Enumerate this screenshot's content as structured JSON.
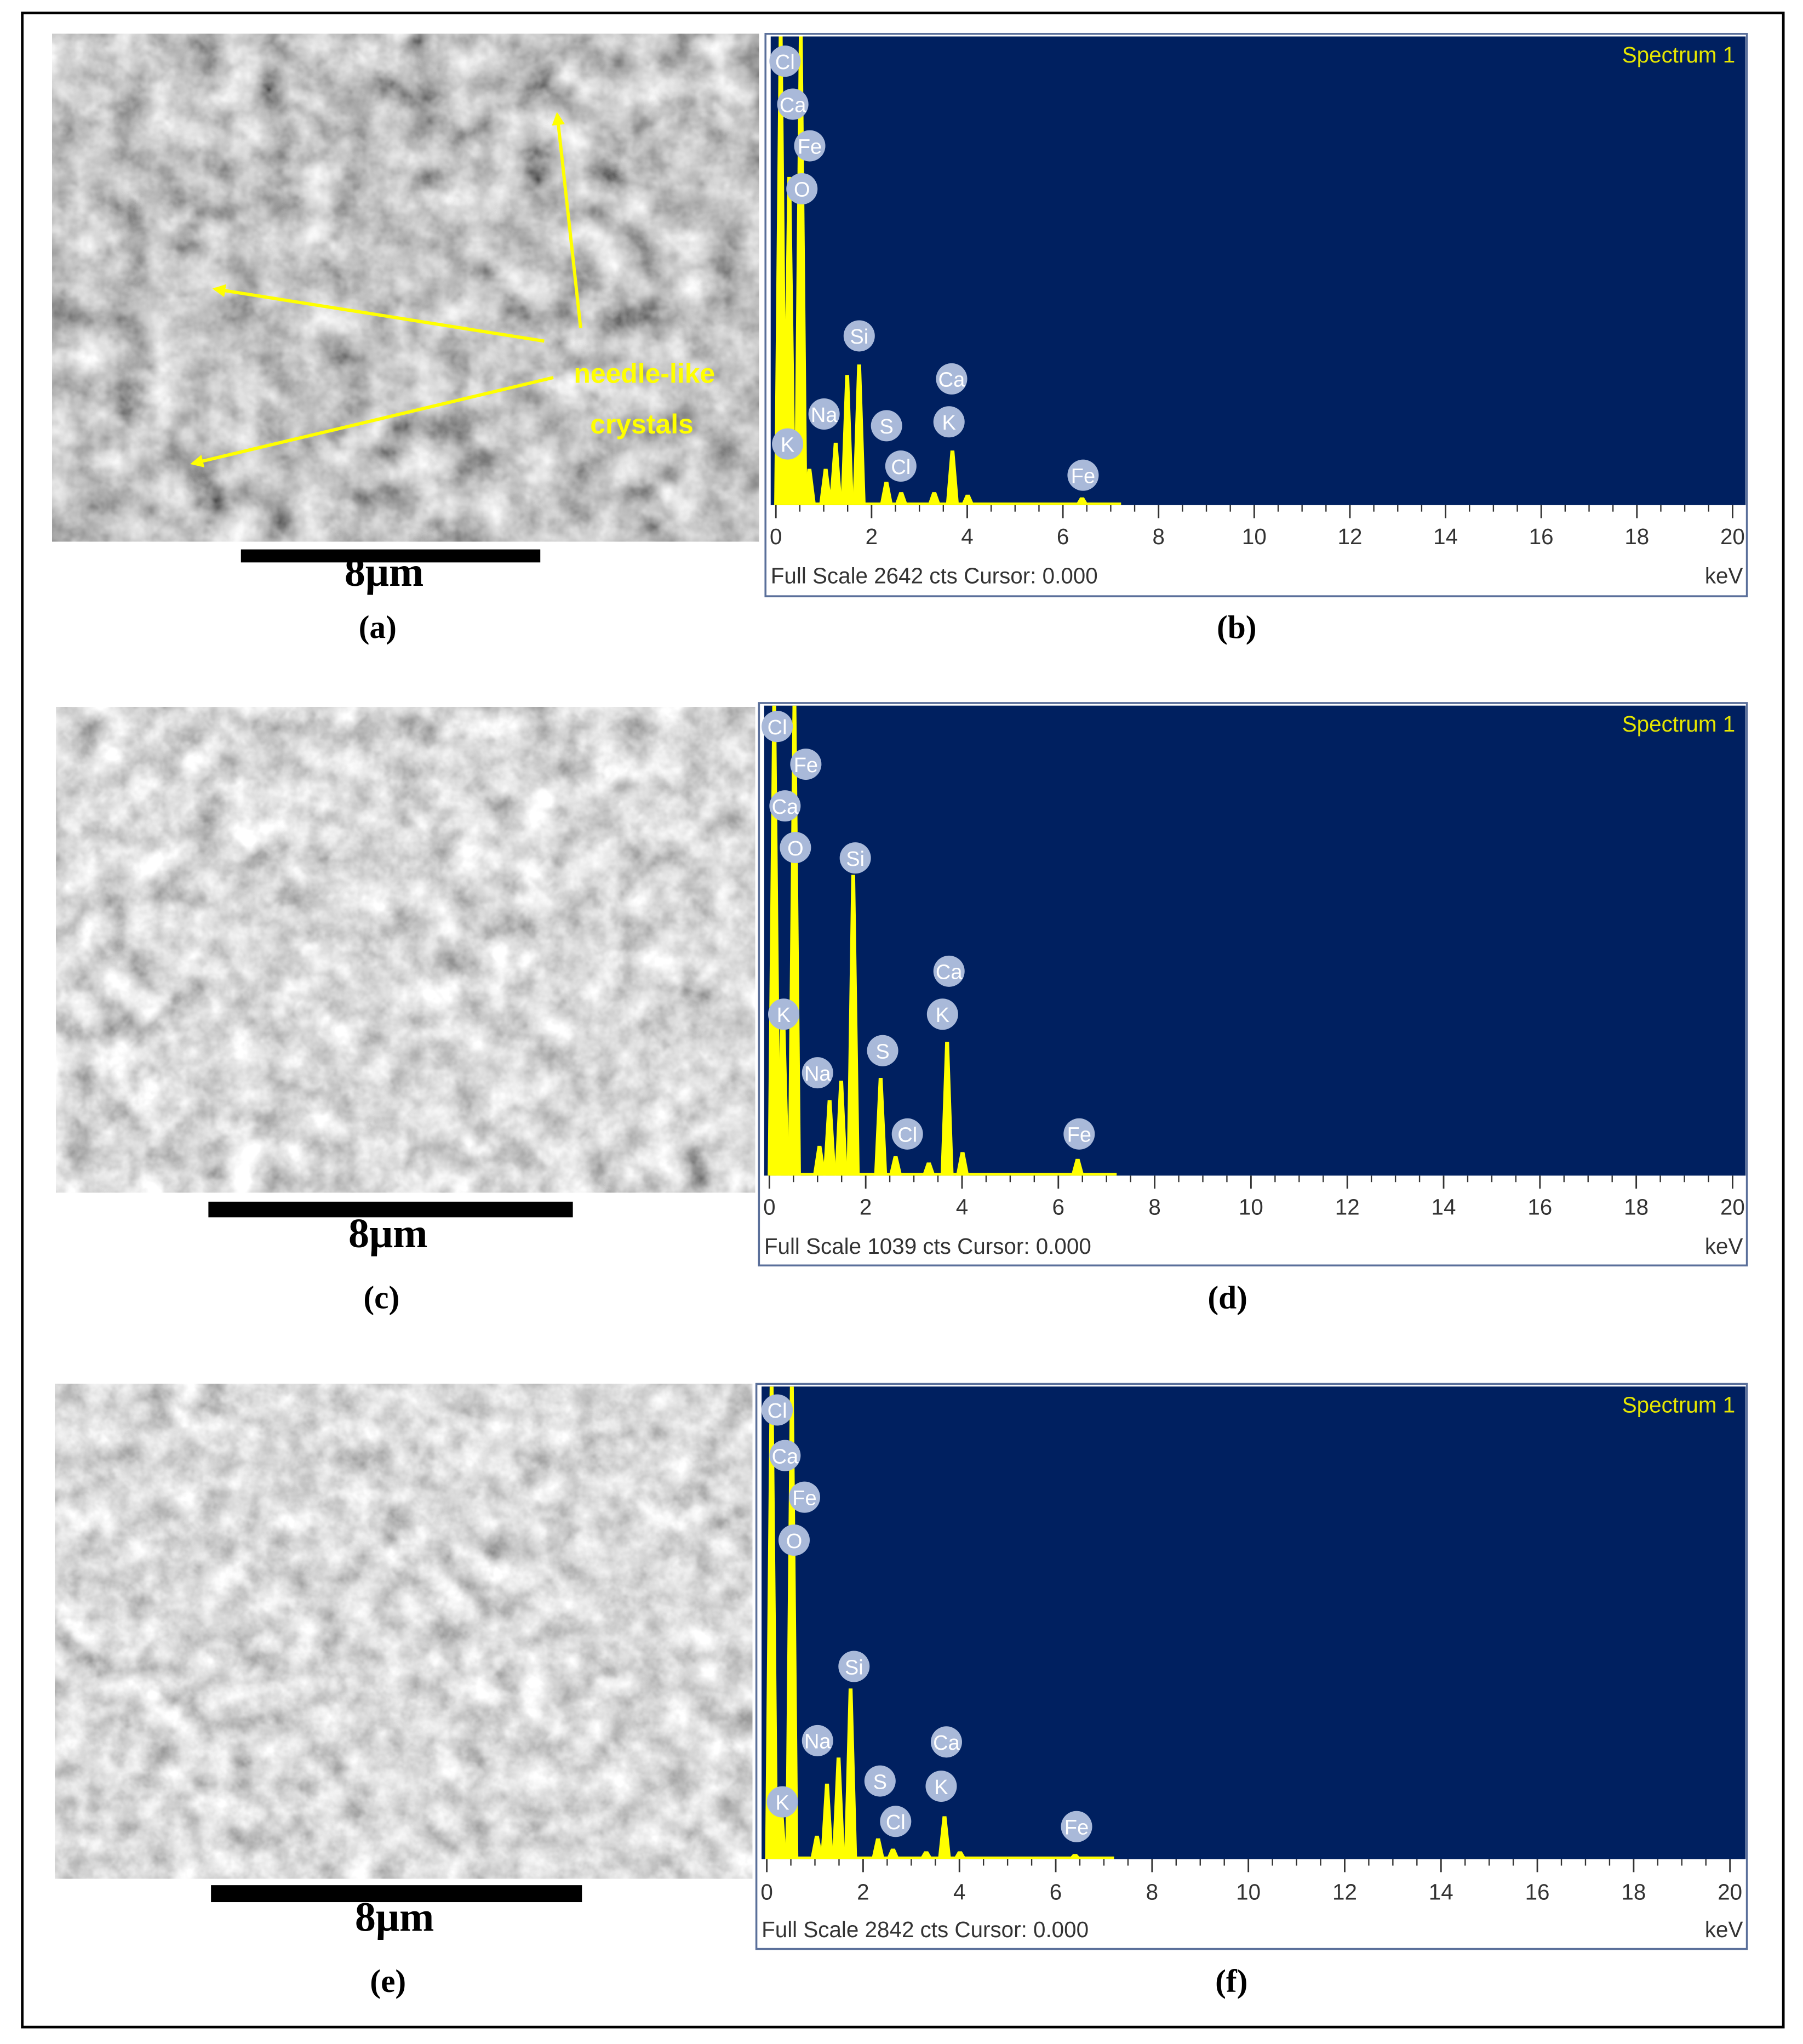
{
  "images": [
    {
      "scale_bar_label": "8μm",
      "panel_label": "(a)",
      "annotation": [
        "needle-like",
        "crystals"
      ]
    },
    {
      "scale_bar_label": "8μm",
      "panel_label": "(c)"
    },
    {
      "scale_bar_label": "8μm",
      "panel_label": "(e)"
    }
  ],
  "chart_data": [
    {
      "type": "spectrum",
      "panel_label": "(b)",
      "title": "Spectrum 1",
      "footer": "Full Scale 2642 cts Cursor: 0.000",
      "x_unit": "keV",
      "xlim": [
        0,
        20
      ],
      "xticks": [
        0,
        2,
        4,
        6,
        8,
        10,
        12,
        14,
        16,
        18,
        20
      ],
      "ylim": [
        0,
        2642
      ],
      "background": "#002060",
      "peak_color": "#ffff00",
      "element_labels": [
        "Cl",
        "Ca",
        "Fe",
        "O",
        "Si",
        "Ca",
        "Na",
        "S",
        "K",
        "K",
        "Cl",
        "Fe"
      ],
      "peaks": {
        "kev": [
          0.1,
          0.28,
          0.52,
          0.7,
          1.04,
          1.25,
          1.49,
          1.74,
          2.31,
          2.62,
          3.31,
          3.69,
          4.01,
          6.4
        ],
        "counts": [
          2642,
          1850,
          2642,
          205,
          205,
          352,
          734,
          793,
          132,
          73,
          73,
          308,
          59,
          44
        ]
      }
    },
    {
      "type": "spectrum",
      "panel_label": "(d)",
      "title": "Spectrum 1",
      "footer": "Full Scale 1039 cts Cursor: 0.000",
      "x_unit": "keV",
      "xlim": [
        0,
        20
      ],
      "xticks": [
        0,
        2,
        4,
        6,
        8,
        10,
        12,
        14,
        16,
        18,
        20
      ],
      "ylim": [
        0,
        1039
      ],
      "background": "#002060",
      "peak_color": "#ffff00",
      "element_labels": [
        "Cl",
        "Fe",
        "Ca",
        "O",
        "Si",
        "Ca",
        "K",
        "K",
        "S",
        "Na",
        "Cl",
        "Fe"
      ],
      "peaks": {
        "kev": [
          0.1,
          0.28,
          0.52,
          1.04,
          1.25,
          1.49,
          1.74,
          2.31,
          2.62,
          3.31,
          3.69,
          4.01,
          6.4
        ],
        "counts": [
          1039,
          383,
          1039,
          66,
          167,
          210,
          665,
          216,
          43,
          29,
          296,
          52,
          37
        ]
      }
    },
    {
      "type": "spectrum",
      "panel_label": "(f)",
      "title": "Spectrum 1",
      "footer": "Full Scale 2842 cts Cursor: 0.000",
      "x_unit": "keV",
      "xlim": [
        0,
        20
      ],
      "xticks": [
        0,
        2,
        4,
        6,
        8,
        10,
        12,
        14,
        16,
        18,
        20
      ],
      "ylim": [
        0,
        2842
      ],
      "background": "#002060",
      "peak_color": "#ffff00",
      "element_labels": [
        "Cl",
        "Ca",
        "Fe",
        "O",
        "Si",
        "Ca",
        "Na",
        "S",
        "K",
        "K",
        "Cl",
        "Fe"
      ],
      "peaks": {
        "kev": [
          0.1,
          0.28,
          0.52,
          1.04,
          1.25,
          1.49,
          1.74,
          2.31,
          2.62,
          3.31,
          3.69,
          4.01,
          6.4
        ],
        "counts": [
          2842,
          376,
          2842,
          141,
          454,
          611,
          1026,
          125,
          63,
          47,
          258,
          47,
          31
        ]
      }
    }
  ]
}
